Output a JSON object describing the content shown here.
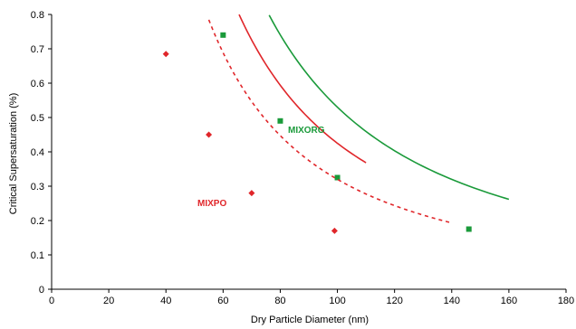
{
  "chart_data": {
    "type": "scatter",
    "xlabel": "Dry Particle Diameter (nm)",
    "ylabel": "Critical Supersaturation (%)",
    "xlim": [
      0,
      180
    ],
    "ylim": [
      0,
      0.8
    ],
    "x_ticks": [
      0,
      20,
      40,
      60,
      80,
      100,
      120,
      140,
      160,
      180
    ],
    "y_ticks": [
      0,
      0.1,
      0.2,
      0.3,
      0.4,
      0.5,
      0.6,
      0.7,
      0.8
    ],
    "grid": false,
    "series": [
      {
        "name": "MIXORG",
        "color": "#1a9a3a",
        "marker": "square",
        "points": [
          {
            "x": 60,
            "y": 0.74
          },
          {
            "x": 80,
            "y": 0.49
          },
          {
            "x": 100,
            "y": 0.325
          },
          {
            "x": 146,
            "y": 0.175
          }
        ],
        "fit": {
          "a": 0.53,
          "k": -1.5,
          "x_range": [
            50,
            160
          ],
          "style": "solid"
        }
      },
      {
        "name": "MIXPO",
        "color": "#e0262a",
        "marker": "diamond",
        "points": [
          {
            "x": 40,
            "y": 0.685
          },
          {
            "x": 55,
            "y": 0.45
          },
          {
            "x": 70,
            "y": 0.28
          },
          {
            "x": 99,
            "y": 0.17
          }
        ],
        "fit": {
          "a": 0.425,
          "k": -1.5,
          "x_range": [
            36,
            110
          ],
          "style": "solid"
        },
        "fit2": {
          "a": 0.32,
          "k": -1.5,
          "x_range": [
            40,
            140
          ],
          "style": "dashed"
        }
      }
    ]
  }
}
